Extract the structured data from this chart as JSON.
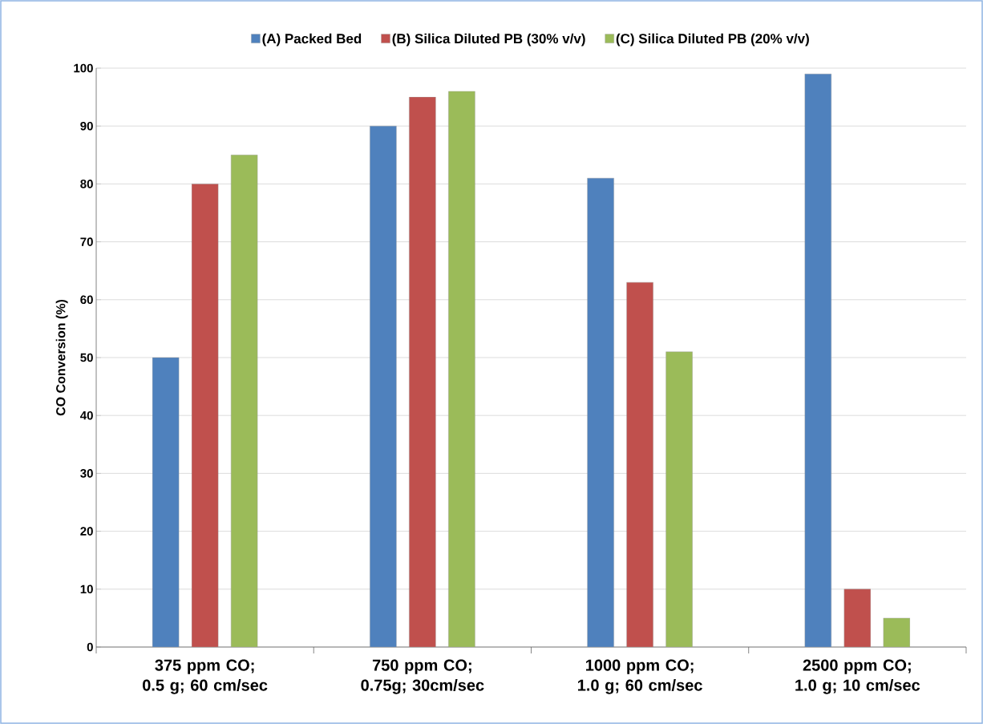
{
  "chart_data": {
    "type": "bar",
    "ylabel": "CO Conversion (%)",
    "categories": [
      "375 ppm CO; 0.5 g; 60 cm/sec",
      "750 ppm CO; 0.75g; 30cm/sec",
      "1000 ppm CO; 1.0 g; 60 cm/sec",
      "2500 ppm CO; 1.0 g; 10 cm/sec"
    ],
    "series": [
      {
        "name": "(A) Packed Bed",
        "color": "#4f81bd",
        "values": [
          50,
          90,
          81,
          99
        ]
      },
      {
        "name": "(B) Silica Diluted PB (30% v/v)",
        "color": "#c0504d",
        "values": [
          80,
          95,
          63,
          10
        ]
      },
      {
        "name": "(C) Silica Diluted PB (20% v/v)",
        "color": "#9bbb59",
        "values": [
          85,
          96,
          51,
          5
        ]
      }
    ],
    "ylim": [
      0,
      100
    ],
    "yticks": [
      0,
      10,
      20,
      30,
      40,
      50,
      60,
      70,
      80,
      90,
      100
    ],
    "grid": "y",
    "legend": "top"
  }
}
